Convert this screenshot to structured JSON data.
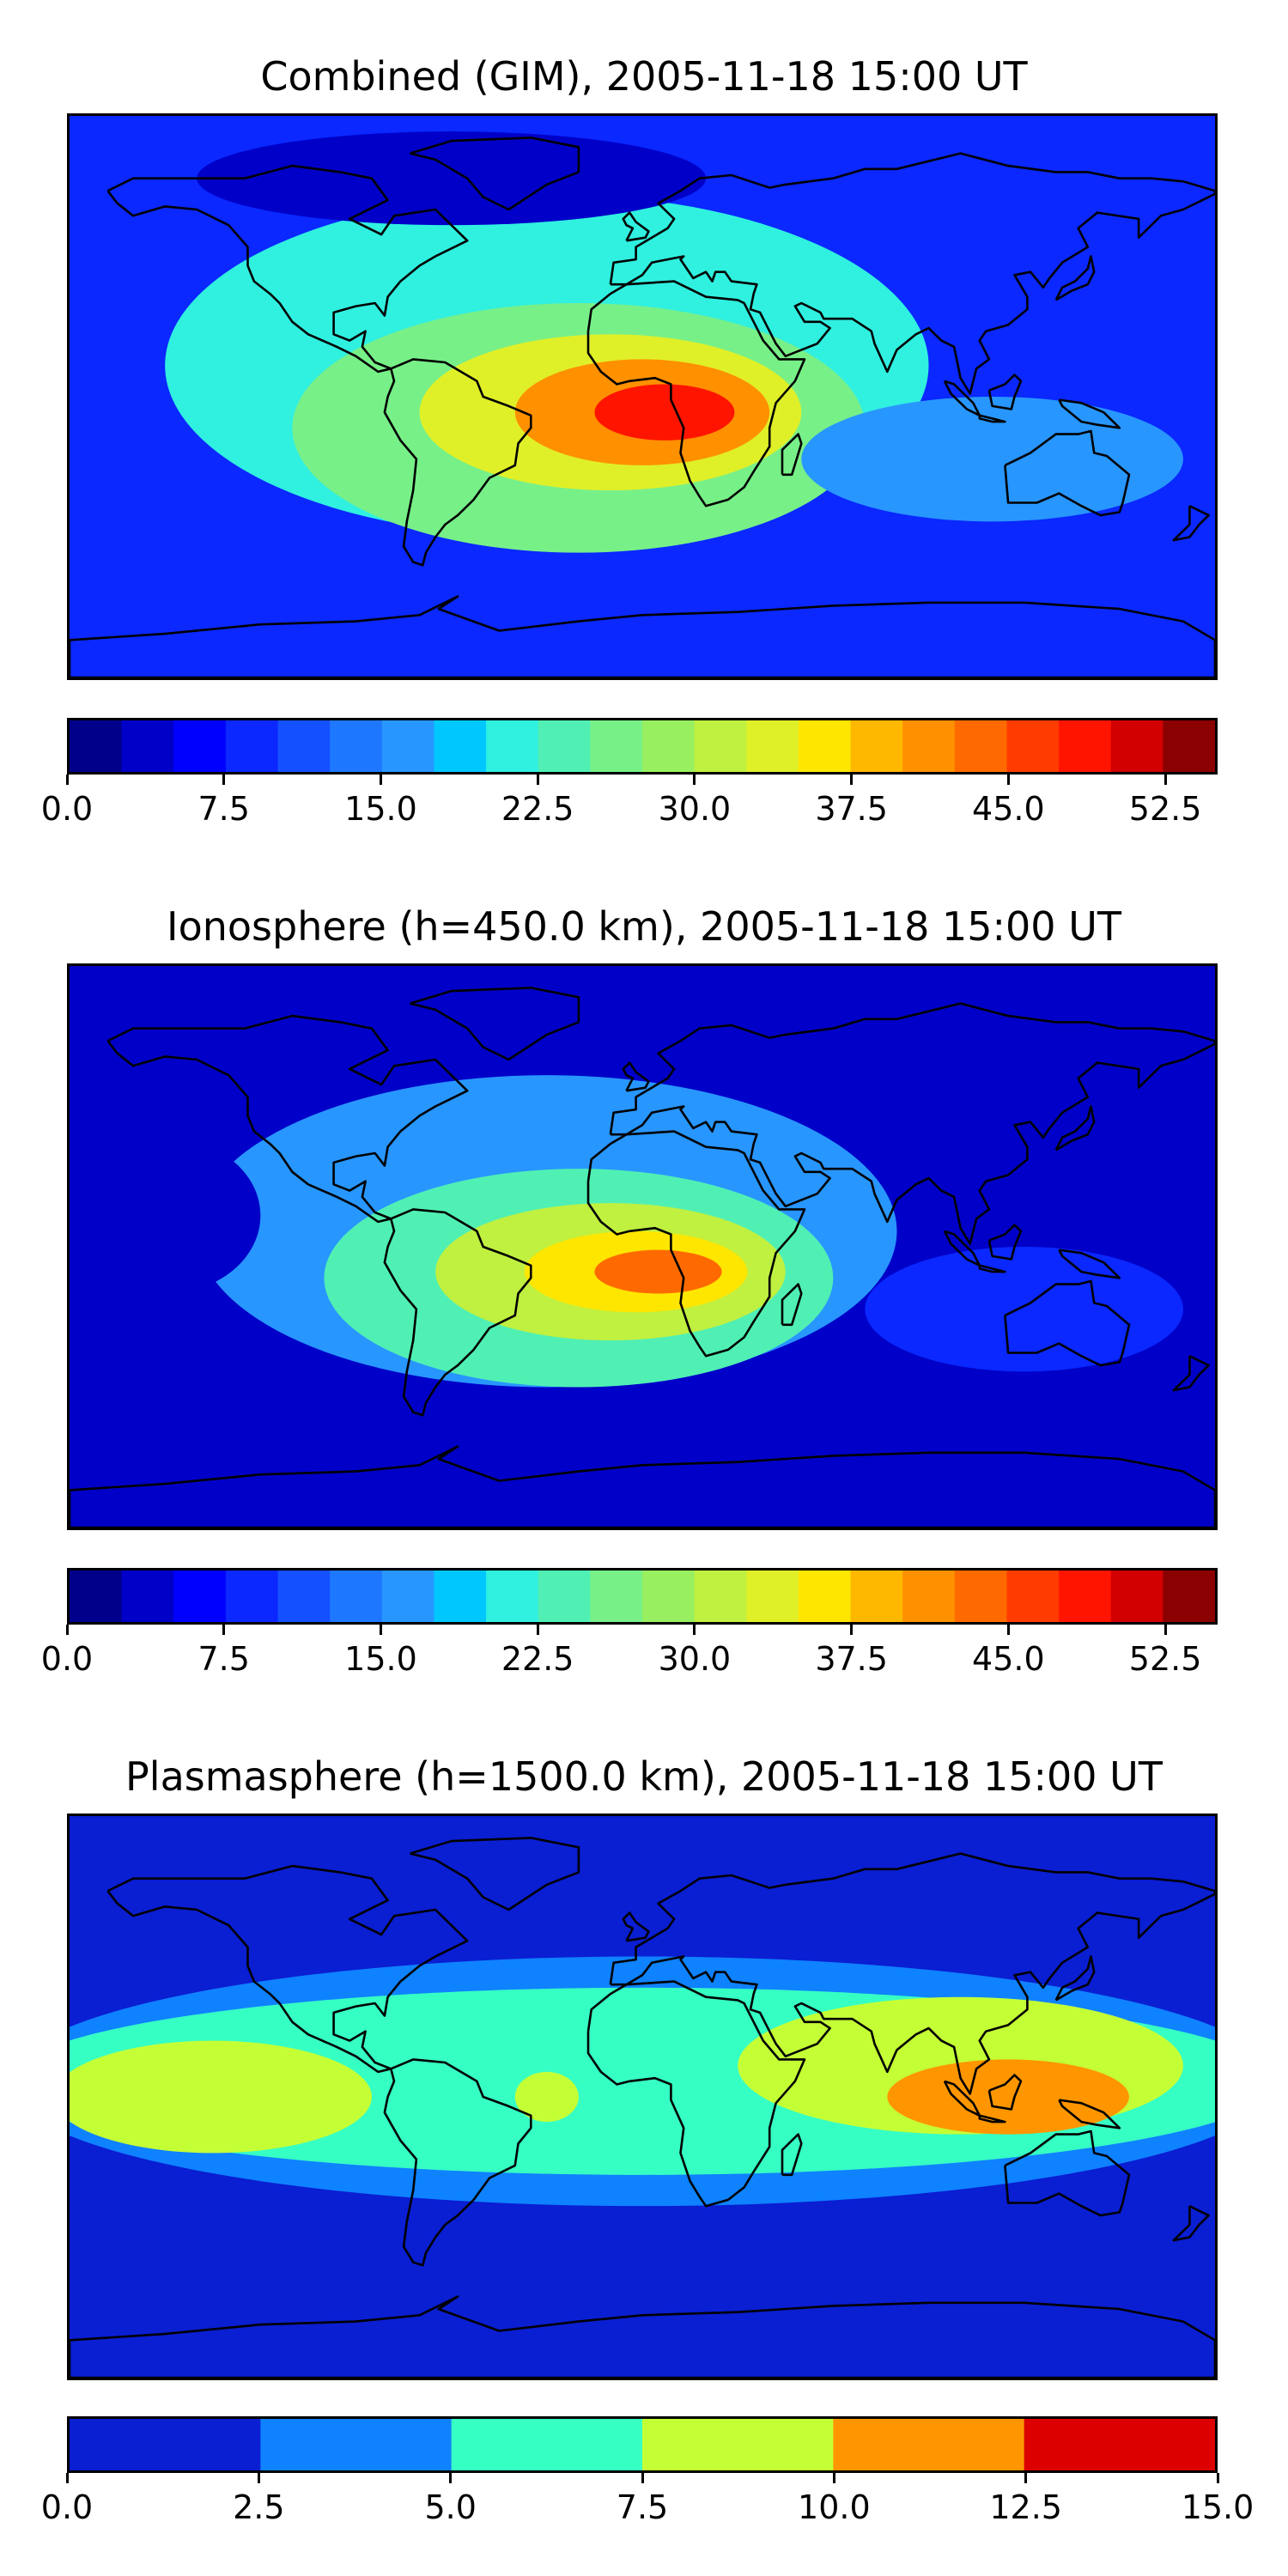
{
  "panels": [
    {
      "title": "Combined (GIM), 2005-11-18 15:00 UT",
      "colorbar": {
        "colors": [
          "#00008b",
          "#0000c8",
          "#0000ff",
          "#0a28ff",
          "#1450ff",
          "#1e78ff",
          "#2896ff",
          "#00c8ff",
          "#30f0e0",
          "#50f0b4",
          "#78f088",
          "#98f060",
          "#c0f040",
          "#e0f028",
          "#ffe600",
          "#ffb800",
          "#ff9000",
          "#ff6a00",
          "#ff3c00",
          "#ff1400",
          "#d20000",
          "#8b0000"
        ],
        "min": 0,
        "max": 55,
        "tick_values": [
          0.0,
          7.5,
          15.0,
          22.5,
          30.0,
          37.5,
          45.0,
          52.5
        ],
        "tick_labels": [
          "0.0",
          "7.5",
          "15.0",
          "22.5",
          "30.0",
          "37.5",
          "45.0",
          "52.5"
        ]
      },
      "field": {
        "background": "#0a28ff",
        "blobs": [
          {
            "lon": -30,
            "lat": 10,
            "rlon": 120,
            "rlat": 55,
            "value": 20
          },
          {
            "lon": -20,
            "lat": -10,
            "rlon": 90,
            "rlat": 40,
            "value": 27
          },
          {
            "lon": -10,
            "lat": -5,
            "rlon": 60,
            "rlat": 25,
            "value": 33
          },
          {
            "lon": 0,
            "lat": -5,
            "rlon": 40,
            "rlat": 17,
            "value": 40
          },
          {
            "lon": 7,
            "lat": -5,
            "rlon": 22,
            "rlat": 9,
            "value": 48
          },
          {
            "lon": 110,
            "lat": -20,
            "rlon": 60,
            "rlat": 20,
            "value": 16
          },
          {
            "lon": -60,
            "lat": 70,
            "rlon": 80,
            "rlat": 15,
            "value": 3
          }
        ]
      }
    },
    {
      "title": "Ionosphere  (h=450.0 km), 2005-11-18 15:00 UT",
      "colorbar": {
        "colors": [
          "#00008b",
          "#0000c8",
          "#0000ff",
          "#0a28ff",
          "#1450ff",
          "#1e78ff",
          "#2896ff",
          "#00c8ff",
          "#30f0e0",
          "#50f0b4",
          "#78f088",
          "#98f060",
          "#c0f040",
          "#e0f028",
          "#ffe600",
          "#ffb800",
          "#ff9000",
          "#ff6a00",
          "#ff3c00",
          "#ff1400",
          "#d20000",
          "#8b0000"
        ],
        "min": 0,
        "max": 55,
        "tick_values": [
          0.0,
          7.5,
          15.0,
          22.5,
          30.0,
          37.5,
          45.0,
          52.5
        ],
        "tick_labels": [
          "0.0",
          "7.5",
          "15.0",
          "22.5",
          "30.0",
          "37.5",
          "45.0",
          "52.5"
        ]
      },
      "field": {
        "background": "#0000c8",
        "blobs": [
          {
            "lon": -30,
            "lat": 5,
            "rlon": 110,
            "rlat": 50,
            "value": 17
          },
          {
            "lon": -20,
            "lat": -10,
            "rlon": 80,
            "rlat": 35,
            "value": 24
          },
          {
            "lon": -10,
            "lat": -8,
            "rlon": 55,
            "rlat": 22,
            "value": 30
          },
          {
            "lon": -2,
            "lat": -8,
            "rlon": 35,
            "rlat": 13,
            "value": 37
          },
          {
            "lon": 5,
            "lat": -8,
            "rlon": 20,
            "rlat": 7,
            "value": 43
          },
          {
            "lon": 120,
            "lat": -20,
            "rlon": 50,
            "rlat": 20,
            "value": 8
          },
          {
            "lon": -150,
            "lat": 10,
            "rlon": 30,
            "rlat": 25,
            "value": 4
          }
        ]
      }
    },
    {
      "title": "Plasmasphere (h=1500.0 km), 2005-11-18 15:00 UT",
      "colorbar": {
        "colors": [
          "#0a1ed2",
          "#0f82ff",
          "#36ffc4",
          "#c4ff36",
          "#ff9600",
          "#dc0000"
        ],
        "min": 0,
        "max": 15,
        "tick_values": [
          0.0,
          2.5,
          5.0,
          7.5,
          10.0,
          12.5,
          15.0
        ],
        "tick_labels": [
          "0.0",
          "2.5",
          "5.0",
          "7.5",
          "10.0",
          "12.5",
          "15.0"
        ]
      },
      "field": {
        "background": "#0a1ed2",
        "blobs": [
          {
            "lon": 0,
            "lat": 5,
            "rlon": 200,
            "rlat": 40,
            "value": 4
          },
          {
            "lon": 0,
            "lat": 5,
            "rlon": 200,
            "rlat": 30,
            "value": 6
          },
          {
            "lon": -135,
            "lat": 0,
            "rlon": 50,
            "rlat": 18,
            "value": 8.5
          },
          {
            "lon": -30,
            "lat": 0,
            "rlon": 10,
            "rlat": 8,
            "value": 8.5
          },
          {
            "lon": 100,
            "lat": 10,
            "rlon": 70,
            "rlat": 22,
            "value": 8.5
          },
          {
            "lon": 115,
            "lat": 0,
            "rlon": 38,
            "rlat": 12,
            "value": 11
          }
        ]
      }
    }
  ]
}
